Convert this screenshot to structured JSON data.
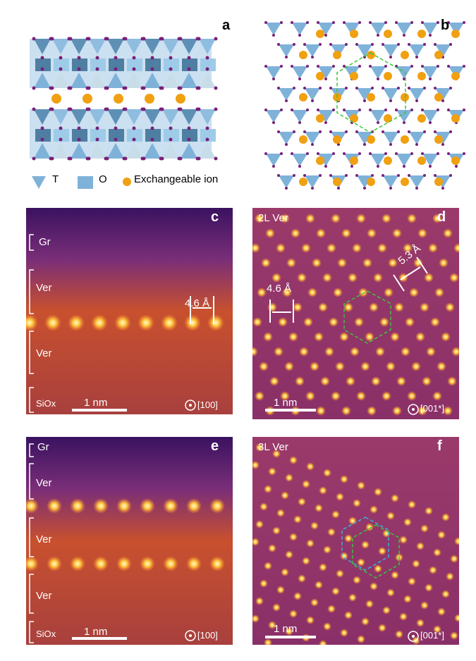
{
  "panels": {
    "a": {
      "label": "a",
      "legend": {
        "t": "T",
        "o": "O",
        "ion": "Exchangeable ion"
      }
    },
    "b": {
      "label": "b"
    },
    "c": {
      "label": "c",
      "layers": [
        "Gr",
        "Ver",
        "Ver",
        "SiOx"
      ],
      "spacing": "4.6 Å",
      "scale": "1 nm",
      "zone": "[100]"
    },
    "d": {
      "label": "d",
      "title": "2L Ver",
      "spacing1": "4.6 Å",
      "spacing2": "5.3 Å",
      "scale": "1 nm",
      "zone": "[001*]"
    },
    "e": {
      "label": "e",
      "layers": [
        "Gr",
        "Ver",
        "Ver",
        "Ver",
        "SiOx"
      ],
      "scale": "1 nm",
      "zone": "[100]"
    },
    "f": {
      "label": "f",
      "title": "3L Ver",
      "scale": "1 nm",
      "zone": "[001*]"
    }
  },
  "colors": {
    "tetra": "#7fb2d9",
    "oxygen": "#7a1f7a",
    "ion": "#f0a010",
    "hex_green": "#3cc43c",
    "hex_cyan": "#3ab0e0"
  }
}
